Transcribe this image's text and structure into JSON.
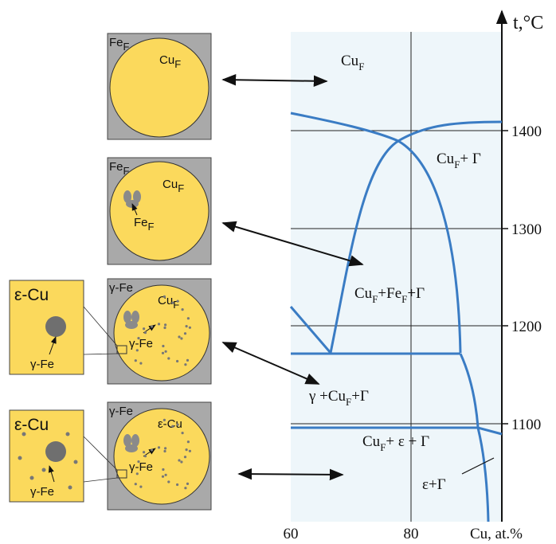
{
  "phase_diagram": {
    "y_axis": {
      "label": "t,°C",
      "ticks": [
        "1400",
        "1300",
        "1200",
        "1100"
      ]
    },
    "x_axis": {
      "ticks": [
        "60",
        "80"
      ],
      "label": "Cu, at.%"
    },
    "regions": [
      [
        "Cu",
        "F"
      ],
      [
        "Cu",
        "F",
        "+ Γ"
      ],
      [
        "Cu",
        "F",
        "+Fe",
        "F",
        "+Γ"
      ],
      [
        "γ +Cu",
        "F",
        "+Γ"
      ],
      [
        "Cu",
        "F",
        "+ ε + Γ"
      ],
      [
        "ε+Γ"
      ]
    ]
  },
  "micrographs": [
    {
      "labels": [
        [
          "Fe",
          "F"
        ],
        [
          "Cu",
          "F"
        ]
      ]
    },
    {
      "labels": [
        [
          "Fe",
          "F"
        ],
        [
          "Cu",
          "F"
        ],
        [
          "Fe",
          "F"
        ]
      ]
    },
    {
      "labels": [
        [
          "γ-Fe"
        ],
        [
          "Cu",
          "F"
        ],
        [
          "γ-Fe"
        ]
      ],
      "inset": {
        "title": "ε-Cu",
        "label": "γ-Fe"
      }
    },
    {
      "labels": [
        [
          "γ-Fe"
        ],
        [
          "ε-Cu"
        ],
        [
          "γ-Fe"
        ]
      ],
      "inset": {
        "title": "ε-Cu",
        "label": "γ-Fe"
      }
    }
  ]
}
